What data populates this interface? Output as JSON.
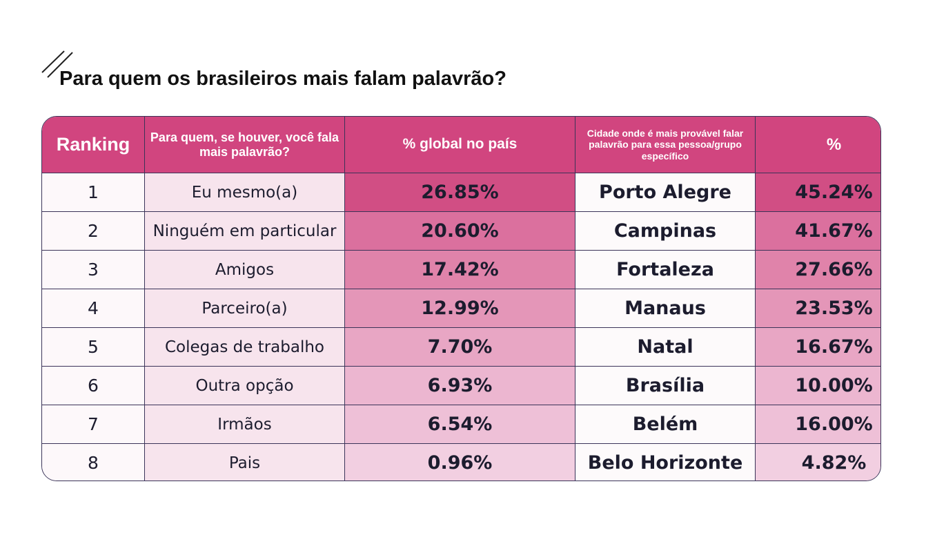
{
  "header": {
    "title": "Para quem os brasileiros mais falam palavrão?"
  },
  "table": {
    "columns": [
      "Ranking",
      "Para quem, se houver, você fala mais palavrão?",
      "% global no país",
      "Cidade onde é mais provável falar palavrão para essa pessoa/grupo específico",
      "%"
    ],
    "rows": [
      [
        "1",
        "Eu mesmo(a)",
        "26.85%",
        "Porto Alegre",
        "45.24%"
      ],
      [
        "2",
        "Ninguém em particular",
        "20.60%",
        "Campinas",
        "41.67%"
      ],
      [
        "3",
        "Amigos",
        "17.42%",
        "Fortaleza",
        "27.66%"
      ],
      [
        "4",
        "Parceiro(a)",
        "12.99%",
        "Manaus",
        "23.53%"
      ],
      [
        "5",
        "Colegas de trabalho",
        "7.70%",
        "Natal",
        "16.67%"
      ],
      [
        "6",
        "Outra opção",
        "6.93%",
        "Brasília",
        "10.00%"
      ],
      [
        "7",
        "Irmãos",
        "6.54%",
        "Belém",
        "16.00%"
      ],
      [
        "8",
        "Pais",
        "0.96%",
        "Belo Horizonte",
        "4.82%"
      ]
    ]
  }
}
